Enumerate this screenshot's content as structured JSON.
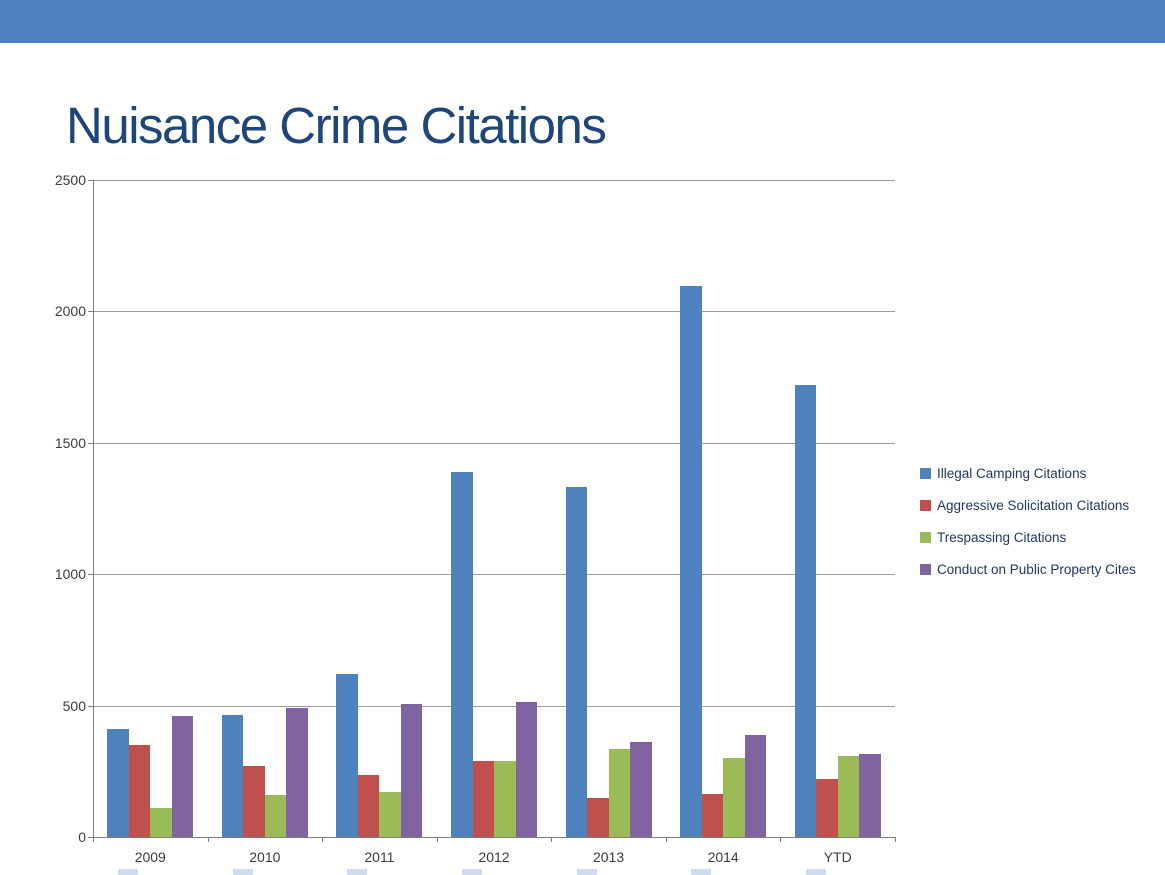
{
  "slide": {
    "title": "Nuisance Crime Citations",
    "title_color": "#1f4679",
    "header_bar_color": "#4d80bd"
  },
  "chart_data": {
    "type": "bar",
    "title": "",
    "xlabel": "",
    "ylabel": "",
    "categories": [
      "2009",
      "2010",
      "2011",
      "2012",
      "2013",
      "2014",
      "YTD"
    ],
    "series": [
      {
        "name": "Illegal Camping Citations",
        "color": "#4f81bd",
        "values": [
          410,
          465,
          620,
          1390,
          1330,
          2095,
          1720
        ]
      },
      {
        "name": "Aggressive Solicitation Citations",
        "color": "#c0504d",
        "values": [
          350,
          270,
          235,
          290,
          150,
          165,
          220
        ]
      },
      {
        "name": "Trespassing Citations",
        "color": "#9bbb59",
        "values": [
          110,
          160,
          170,
          290,
          335,
          300,
          310
        ]
      },
      {
        "name": "Conduct on Public Property Cites",
        "color": "#8064a2",
        "values": [
          460,
          490,
          505,
          515,
          360,
          390,
          315
        ]
      }
    ],
    "ylim": [
      0,
      2500
    ],
    "ytick_interval": 500,
    "ytick_labels": [
      "0",
      "500",
      "1000",
      "1500",
      "2000",
      "2500"
    ],
    "grid": true,
    "legend_position": "right"
  }
}
